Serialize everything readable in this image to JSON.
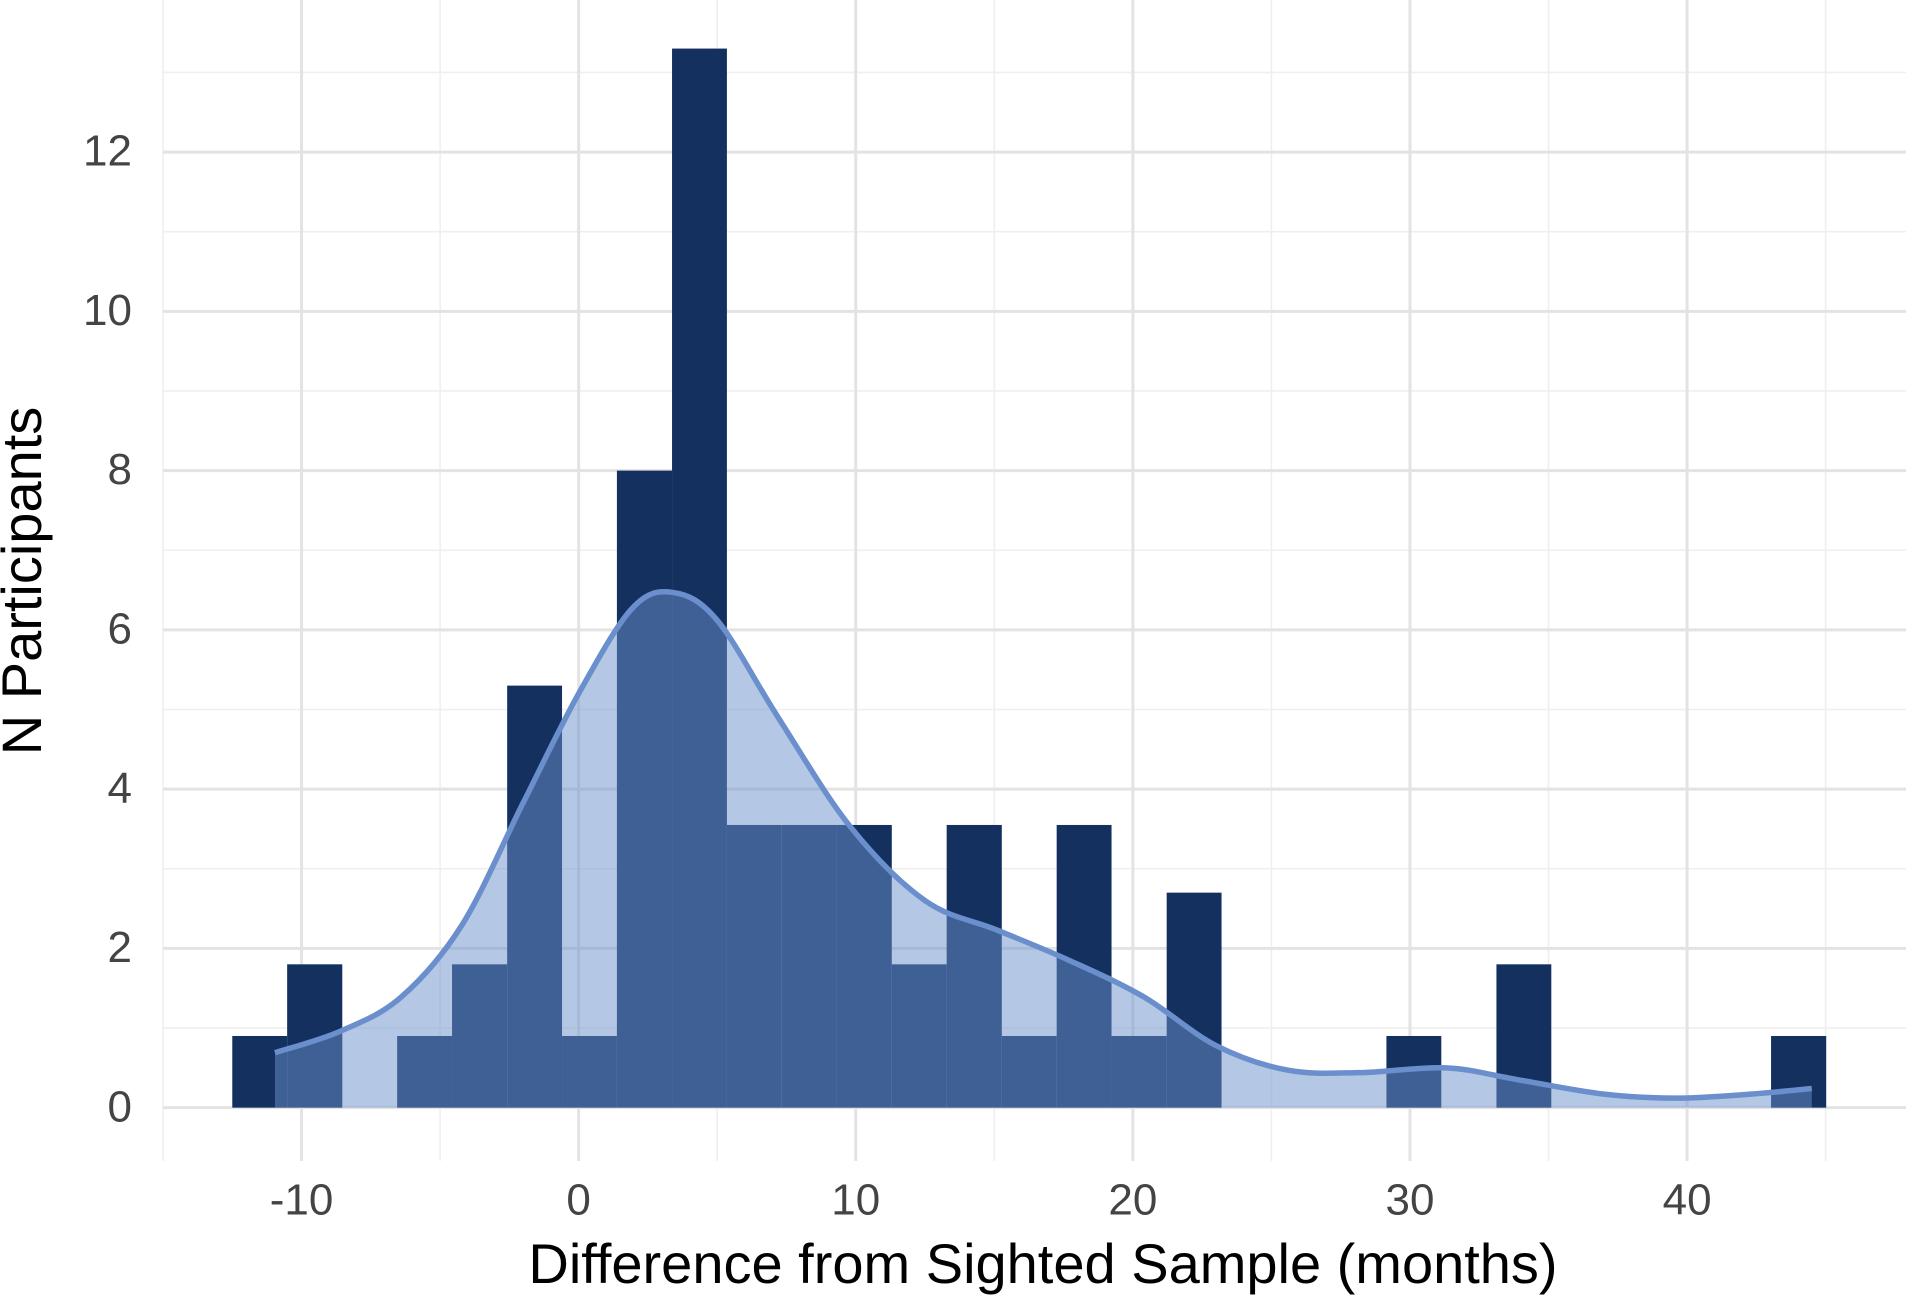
{
  "chart_data": {
    "type": "histogram",
    "xlabel": "Difference from Sighted Sample (months)",
    "ylabel": "N Participants",
    "bins": [
      -12.5,
      -10.52,
      -8.53,
      -6.55,
      -4.57,
      -2.58,
      -0.6,
      1.38,
      3.37,
      5.35,
      7.33,
      9.32,
      11.3,
      13.28,
      15.27,
      17.25,
      19.23,
      21.22,
      23.2,
      25.18,
      27.17,
      29.15,
      31.13,
      33.12,
      35.1,
      37.08,
      39.07,
      41.05,
      43.03,
      45.02
    ],
    "counts": [
      0.9,
      1.8,
      0,
      0.9,
      1.8,
      5.3,
      0.9,
      8,
      13.3,
      3.55,
      3.55,
      3.55,
      1.8,
      3.55,
      0.9,
      3.55,
      0.9,
      2.7,
      0,
      0,
      0,
      0.9,
      0,
      1.8,
      0,
      0,
      0,
      0,
      0.9
    ],
    "color": "#14305f",
    "density": {
      "x": [
        -10.96,
        -8.6,
        -6.4,
        -4.2,
        -2,
        0,
        1.93,
        3.4,
        5,
        7.2,
        9.8,
        12.5,
        15.1,
        17.7,
        20.4,
        23,
        25.6,
        28.2,
        31.3,
        33.9,
        37,
        39.6,
        42.3,
        44.5
      ],
      "y": [
        0.69,
        0.96,
        1.39,
        2.3,
        3.83,
        5.2,
        6.27,
        6.47,
        6.12,
        4.9,
        3.53,
        2.6,
        2.23,
        1.85,
        1.39,
        0.78,
        0.47,
        0.44,
        0.5,
        0.35,
        0.17,
        0.12,
        0.17,
        0.24
      ],
      "color": "#6a8fcc",
      "fill_opacity": 0.5
    },
    "xlim": [
      -15,
      47.9
    ],
    "ylim": [
      -0.67,
      13.91
    ],
    "xticks": [
      -10,
      0,
      10,
      20,
      30,
      40
    ],
    "yticks": [
      0,
      2,
      4,
      6,
      8,
      10,
      12
    ],
    "grid": true
  }
}
